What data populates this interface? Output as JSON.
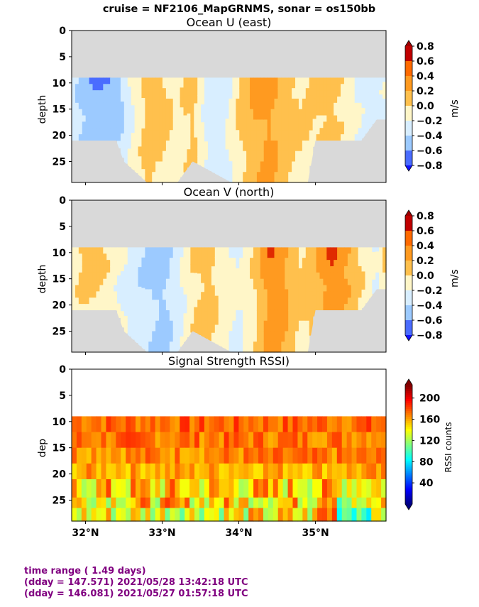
{
  "suptitle": "cruise = NF2106_MapGRNMS,  sonar = os150bb",
  "x_tick_labels": [
    "32°N",
    "33°N",
    "34°N",
    "35°N"
  ],
  "x_ticks": [
    32.0,
    33.0,
    34.0,
    35.0
  ],
  "xlim": [
    31.82,
    35.92
  ],
  "footer": {
    "line1": "time range ( 1.49 days)",
    "line2": "(dday = 147.571) 2021/05/28 13:42:18 UTC",
    "line3": "(dday = 146.081) 2021/05/27 01:57:18 UTC"
  },
  "colors": {
    "nodata": "#d9d9d9",
    "footer_text": "#800080",
    "velocity_levels": [
      "#1010ff",
      "#4a6cff",
      "#9ccaff",
      "#d8eeff",
      "#fff6c8",
      "#ffc04d",
      "#ff9a20",
      "#e02a00",
      "#a00000"
    ]
  },
  "chart_data": [
    {
      "type": "heatmap",
      "title": "Ocean U (east)",
      "ylabel": "depth",
      "ylim": [
        29,
        0
      ],
      "y_ticks": [
        0,
        5,
        10,
        15,
        20,
        25
      ],
      "colorbar": {
        "label": "m/s",
        "ticks": [
          0.8,
          0.6,
          0.4,
          0.2,
          0.0,
          -0.2,
          -0.4,
          -0.6,
          -0.8
        ],
        "tick_labels": [
          "0.8",
          "0.6",
          "0.4",
          "0.2",
          "0.0",
          "−0.2",
          "−0.4",
          "−0.6",
          "−0.8"
        ],
        "range": [
          -0.8,
          0.8
        ]
      },
      "data_top_depth": 9,
      "bottom_depth_profile": {
        "lat": [
          31.82,
          32.1,
          32.4,
          32.5,
          32.8,
          33.2,
          33.4,
          33.9,
          34.2,
          34.6,
          34.9,
          35.0,
          35.2,
          35.6,
          35.8,
          35.92
        ],
        "depth": [
          21,
          21,
          21,
          25,
          29,
          29,
          25,
          29,
          29,
          29,
          29,
          21,
          21,
          21,
          17,
          17
        ]
      },
      "columns": {
        "lat": [
          31.82,
          32.0,
          32.2,
          32.4,
          32.6,
          32.8,
          33.0,
          33.2,
          33.4,
          33.6,
          33.8,
          34.0,
          34.2,
          34.4,
          34.6,
          34.8,
          35.0,
          35.2,
          35.4,
          35.6,
          35.8,
          35.92
        ],
        "u_mid": [
          -0.1,
          -0.3,
          -0.4,
          -0.35,
          0.0,
          0.3,
          0.25,
          0.1,
          0.3,
          -0.1,
          -0.1,
          0.2,
          0.4,
          0.5,
          0.3,
          0.2,
          0.25,
          0.3,
          0.15,
          -0.05,
          -0.1,
          0.0
        ]
      }
    },
    {
      "type": "heatmap",
      "title": "Ocean V (north)",
      "ylabel": "depth",
      "ylim": [
        29,
        0
      ],
      "y_ticks": [
        0,
        5,
        10,
        15,
        20,
        25
      ],
      "colorbar": {
        "label": "m/s",
        "ticks": [
          0.8,
          0.6,
          0.4,
          0.2,
          0.0,
          -0.2,
          -0.4,
          -0.6,
          -0.8
        ],
        "tick_labels": [
          "0.8",
          "0.6",
          "0.4",
          "0.2",
          "0.0",
          "−0.2",
          "−0.4",
          "−0.6",
          "−0.8"
        ],
        "range": [
          -0.8,
          0.8
        ]
      },
      "data_top_depth": 9,
      "bottom_depth_profile": {
        "lat": [
          31.82,
          32.1,
          32.4,
          32.5,
          32.8,
          33.2,
          33.4,
          33.9,
          34.2,
          34.6,
          34.9,
          35.0,
          35.2,
          35.6,
          35.8,
          35.92
        ],
        "depth": [
          21,
          21,
          21,
          25,
          29,
          29,
          25,
          29,
          29,
          29,
          29,
          21,
          21,
          21,
          17,
          17
        ]
      },
      "columns": {
        "lat": [
          31.82,
          32.0,
          32.2,
          32.4,
          32.6,
          32.8,
          33.0,
          33.2,
          33.4,
          33.6,
          33.8,
          34.0,
          34.2,
          34.4,
          34.6,
          34.8,
          35.0,
          35.2,
          35.4,
          35.6,
          35.8,
          35.92
        ],
        "v_mid": [
          0.1,
          0.3,
          0.25,
          0.05,
          -0.1,
          -0.2,
          -0.3,
          -0.1,
          0.2,
          0.3,
          0.1,
          0.0,
          0.2,
          0.55,
          0.45,
          0.2,
          0.35,
          0.6,
          0.45,
          0.2,
          0.0,
          0.3
        ]
      }
    },
    {
      "type": "heatmap",
      "title": "Signal Strength RSSI)",
      "ylabel": "dep",
      "ylim": [
        29,
        0
      ],
      "y_ticks": [
        0,
        5,
        10,
        15,
        20,
        25
      ],
      "colorbar": {
        "label": "RSSI counts",
        "ticks": [
          200,
          160,
          120,
          80,
          40
        ],
        "tick_labels": [
          "200",
          "160",
          "120",
          "80",
          "40"
        ],
        "range": [
          0,
          225
        ]
      },
      "data_top_depth": 9,
      "rssi_by_depth_band": {
        "band_top_depth": [
          9,
          12,
          15,
          18,
          21,
          24.5,
          26.5
        ],
        "typical_rssi": [
          175,
          172,
          168,
          160,
          150,
          150,
          140
        ]
      }
    }
  ]
}
